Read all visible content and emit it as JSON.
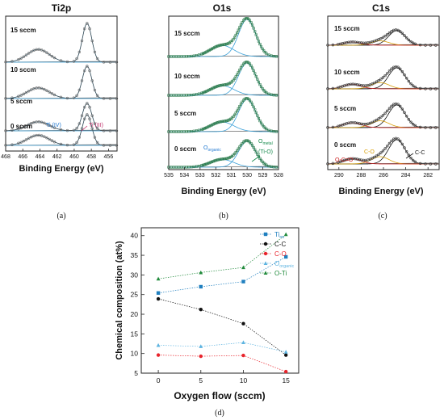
{
  "chart_data": [
    {
      "type": "line",
      "panel": "(a)",
      "title": "Ti2p",
      "xlabel": "Binding Energy (eV)",
      "x_ticks": [
        "468",
        "466",
        "464",
        "462",
        "460",
        "458",
        "456"
      ],
      "xlim": [
        468,
        455
      ],
      "reversed_x": true,
      "rows": [
        "15 sccm",
        "10 sccm",
        "5 sccm",
        "0 sccm"
      ],
      "peaks": [
        {
          "center": 458.5,
          "rel_height": 1.0
        },
        {
          "center": 464.2,
          "rel_height": 0.33
        }
      ],
      "annotations": [
        {
          "text": "Ti (IV)",
          "color": "#1f77d0"
        },
        {
          "text": "Ti (III)",
          "color": "#c0306a"
        }
      ],
      "colors": {
        "data": "#6e6e6e",
        "fit": "#3aa0d8",
        "background": "#555555"
      }
    },
    {
      "type": "line",
      "panel": "(b)",
      "title": "O1s",
      "xlabel": "Binding Energy (eV)",
      "x_ticks": [
        "535",
        "534",
        "533",
        "532",
        "531",
        "530",
        "529",
        "528"
      ],
      "xlim": [
        535,
        528
      ],
      "reversed_x": true,
      "rows": [
        "15 sccm",
        "10 sccm",
        "5 sccm",
        "0 sccm"
      ],
      "peaks": [
        {
          "center": 530.0,
          "rel_height": 1.0
        },
        {
          "center": 531.6,
          "rel_height": 0.3
        }
      ],
      "annotations": [
        {
          "text": "O",
          "sub": "organic",
          "color": "#1f77d0"
        },
        {
          "text": "O",
          "sub": "metal",
          "color": "#168a4c"
        },
        {
          "text": "(Ti-O)",
          "color": "#168a4c"
        }
      ],
      "colors": {
        "data": "#2e7d4f",
        "fit": "#3aa0d8",
        "background": "#555555"
      }
    },
    {
      "type": "line",
      "panel": "(c)",
      "title": "C1s",
      "xlabel": "Binding Energy (eV)",
      "x_ticks": [
        "290",
        "288",
        "286",
        "284",
        "282"
      ],
      "xlim": [
        291,
        281
      ],
      "reversed_x": true,
      "rows": [
        "15 sccm",
        "10 sccm",
        "5 sccm",
        "0 sccm"
      ],
      "peaks": [
        {
          "center": 284.8,
          "rel_height": 1.0
        },
        {
          "center": 286.3,
          "rel_height": 0.3
        },
        {
          "center": 288.8,
          "rel_height": 0.22
        }
      ],
      "annotations": [
        {
          "text": "O-C=O",
          "color": "#cc2222"
        },
        {
          "text": "C-O",
          "color": "#d9a00a"
        },
        {
          "text": "C-C",
          "color": "#111111"
        }
      ],
      "colors": {
        "data": "#333333",
        "fit": "#3aa0d8",
        "background": "#555555"
      }
    },
    {
      "type": "line",
      "panel": "(d)",
      "xlabel": "Oxygen flow (sccm)",
      "ylabel": "Chemical composition (at%)",
      "x": [
        0,
        5,
        10,
        15
      ],
      "x_ticks": [
        "0",
        "5",
        "10",
        "15"
      ],
      "y_ticks": [
        "5",
        "10",
        "15",
        "20",
        "25",
        "30",
        "35",
        "40"
      ],
      "ylim": [
        5,
        42
      ],
      "xlim": [
        -2,
        16.5
      ],
      "legend_position": "top-right",
      "series": [
        {
          "name": "Ti",
          "sub": "ox",
          "color": "#1f7fbf",
          "marker": "square",
          "values": [
            25.4,
            27.0,
            28.3,
            34.6
          ]
        },
        {
          "name": "C-C",
          "color": "#111111",
          "marker": "circle",
          "values": [
            23.9,
            21.2,
            17.6,
            9.6
          ]
        },
        {
          "name": "C-O",
          "color": "#e8232b",
          "marker": "circle",
          "values": [
            9.6,
            9.3,
            9.5,
            5.4
          ]
        },
        {
          "name": "O",
          "sub": "organic",
          "color": "#5cb3e0",
          "marker": "triangle",
          "values": [
            12.1,
            11.8,
            12.8,
            10.4
          ]
        },
        {
          "name": "O-Ti",
          "color": "#1f8a3a",
          "marker": "triangle",
          "values": [
            29.0,
            30.6,
            31.9,
            40.3
          ]
        }
      ]
    }
  ],
  "captions": [
    "(a)",
    "(b)",
    "(c)",
    "(d)"
  ]
}
